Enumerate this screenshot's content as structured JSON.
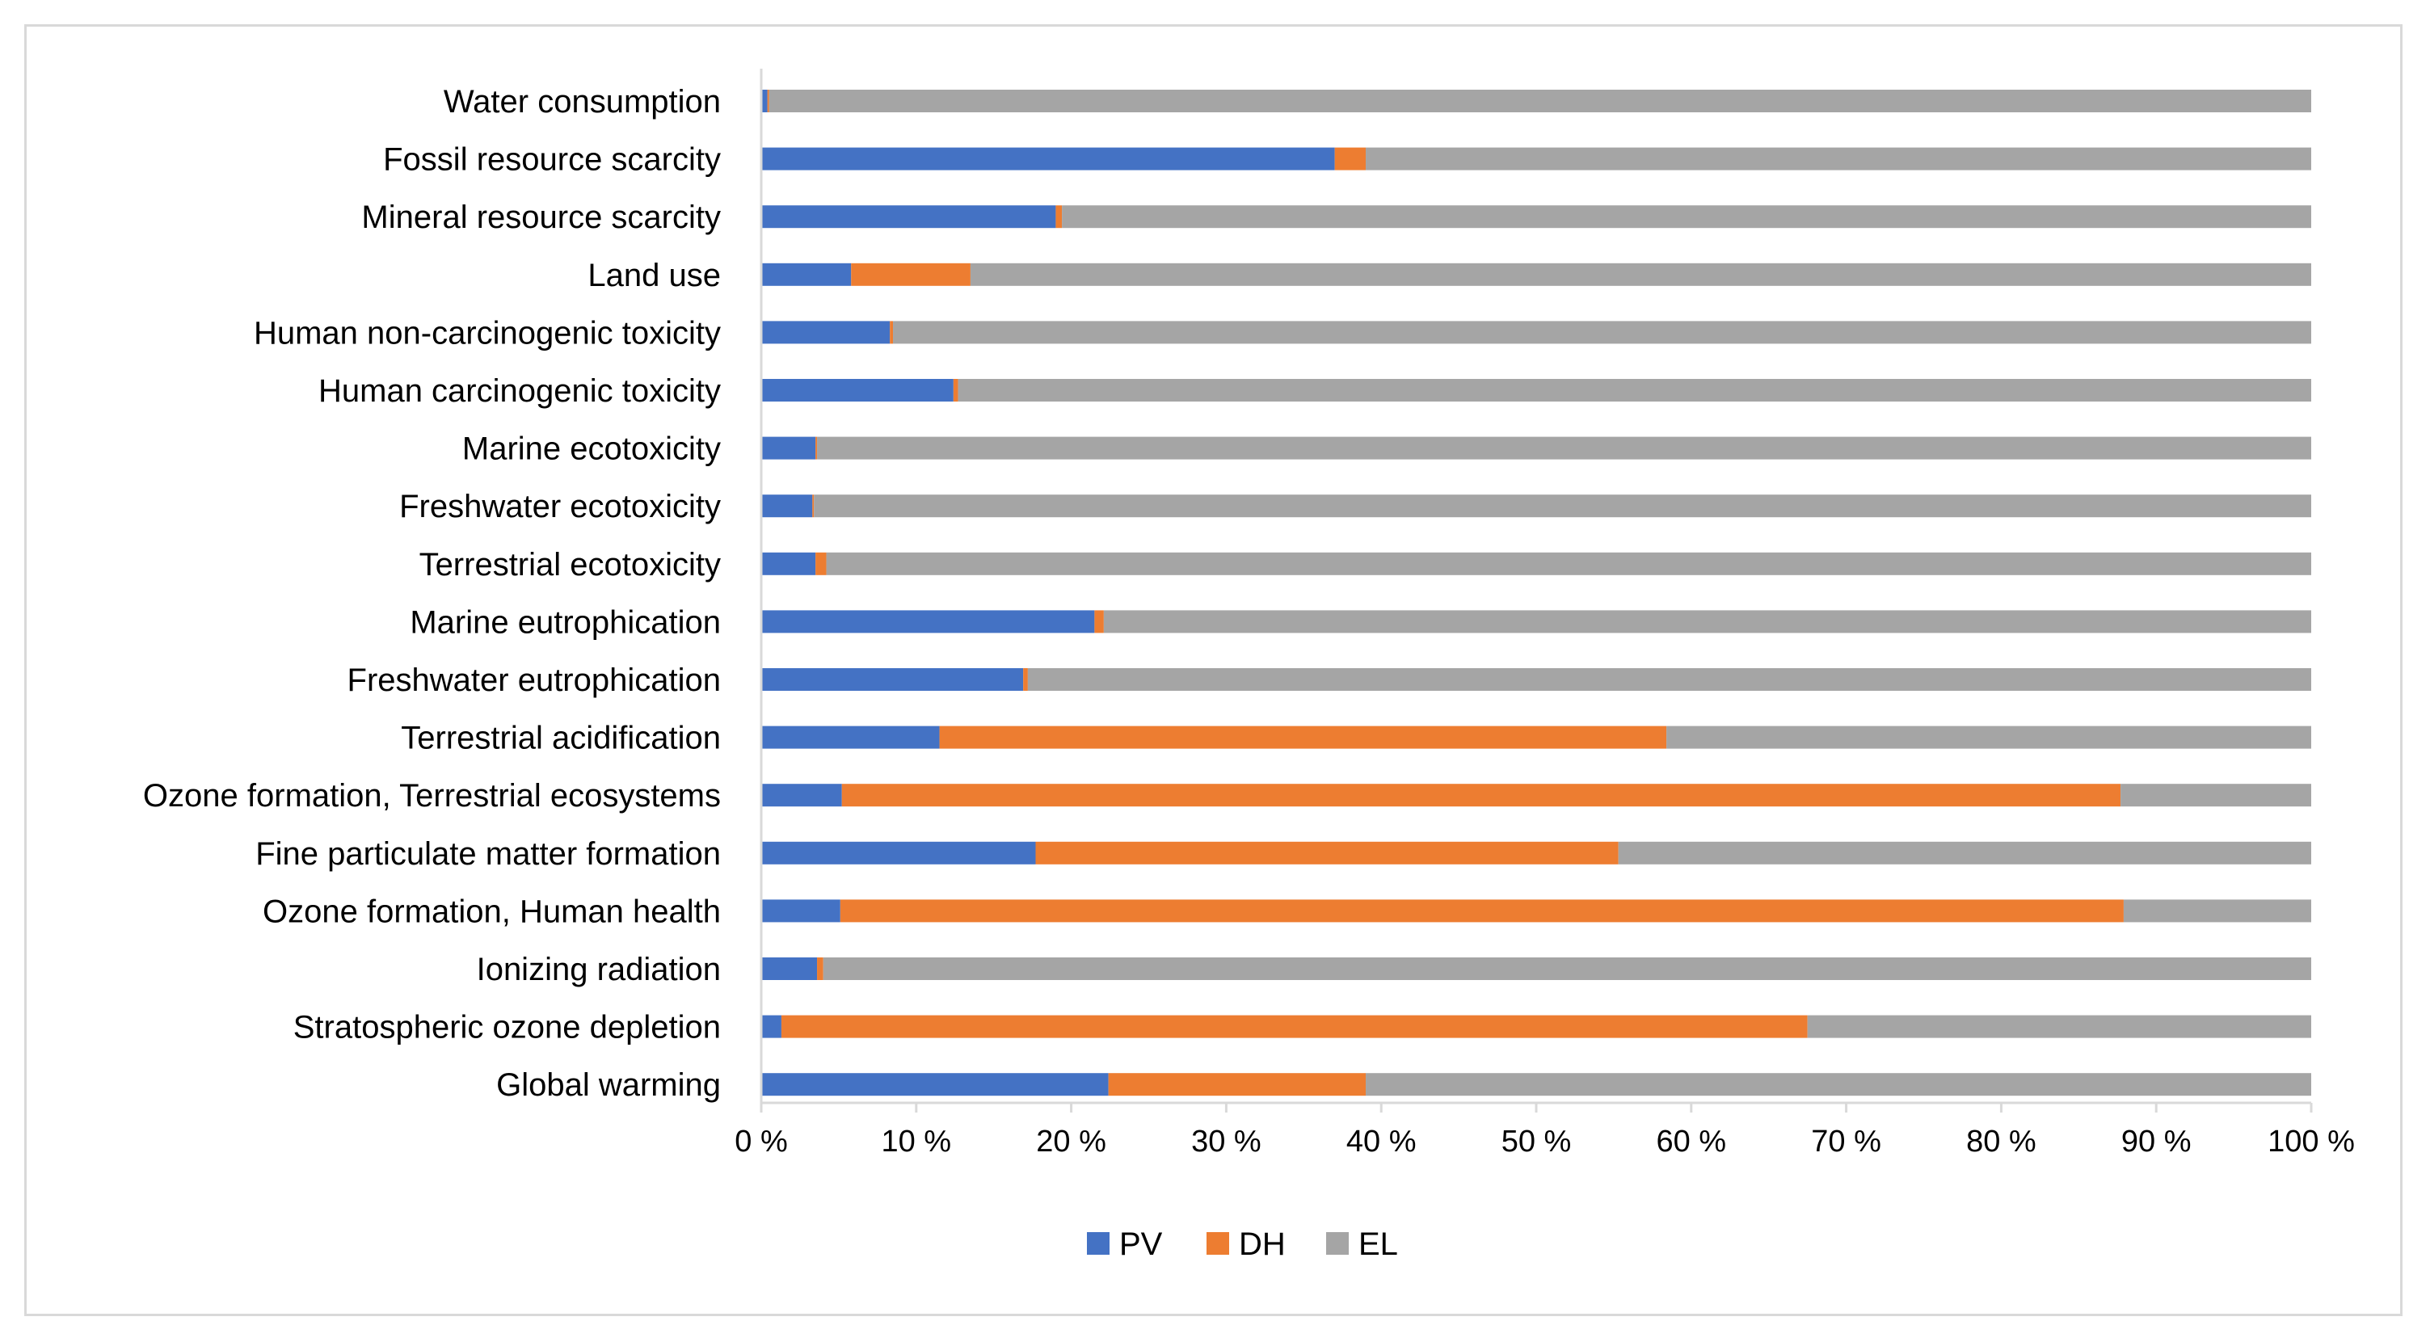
{
  "chart_data": {
    "type": "bar",
    "orientation": "horizontal",
    "stacked": "percent",
    "title": "",
    "xlabel": "",
    "ylabel": "",
    "xlim": [
      0,
      100
    ],
    "grid": false,
    "legend_position": "bottom",
    "categories": [
      "Water consumption",
      "Fossil resource scarcity",
      "Mineral resource scarcity",
      "Land use",
      "Human non-carcinogenic toxicity",
      "Human carcinogenic toxicity",
      "Marine ecotoxicity",
      "Freshwater ecotoxicity",
      "Terrestrial ecotoxicity",
      "Marine eutrophication",
      "Freshwater eutrophication",
      "Terrestrial acidification",
      "Ozone formation, Terrestrial ecosystems",
      "Fine particulate matter formation",
      "Ozone formation, Human health",
      "Ionizing radiation",
      "Stratospheric ozone depletion",
      "Global warming"
    ],
    "series": [
      {
        "name": "PV",
        "color": "#4472c4",
        "values": [
          0.4,
          37.0,
          19.0,
          5.8,
          8.3,
          12.4,
          3.5,
          3.3,
          3.5,
          21.5,
          16.9,
          11.5,
          5.2,
          17.7,
          5.1,
          3.6,
          1.3,
          22.4
        ]
      },
      {
        "name": "DH",
        "color": "#ed7d31",
        "values": [
          0.1,
          2.0,
          0.4,
          7.7,
          0.2,
          0.3,
          0.1,
          0.1,
          0.7,
          0.6,
          0.3,
          46.9,
          82.5,
          37.6,
          82.8,
          0.4,
          66.2,
          16.6
        ]
      },
      {
        "name": "EL",
        "color": "#a5a5a5",
        "values": [
          99.5,
          61.0,
          80.6,
          86.5,
          91.5,
          87.3,
          96.4,
          96.6,
          95.8,
          77.9,
          82.8,
          41.6,
          12.3,
          44.7,
          12.1,
          96.0,
          32.5,
          61.0
        ]
      }
    ],
    "x_ticks": [
      "0 %",
      "10 %",
      "20 %",
      "30 %",
      "40 %",
      "50 %",
      "60 %",
      "70 %",
      "80 %",
      "90 %",
      "100 %"
    ]
  }
}
